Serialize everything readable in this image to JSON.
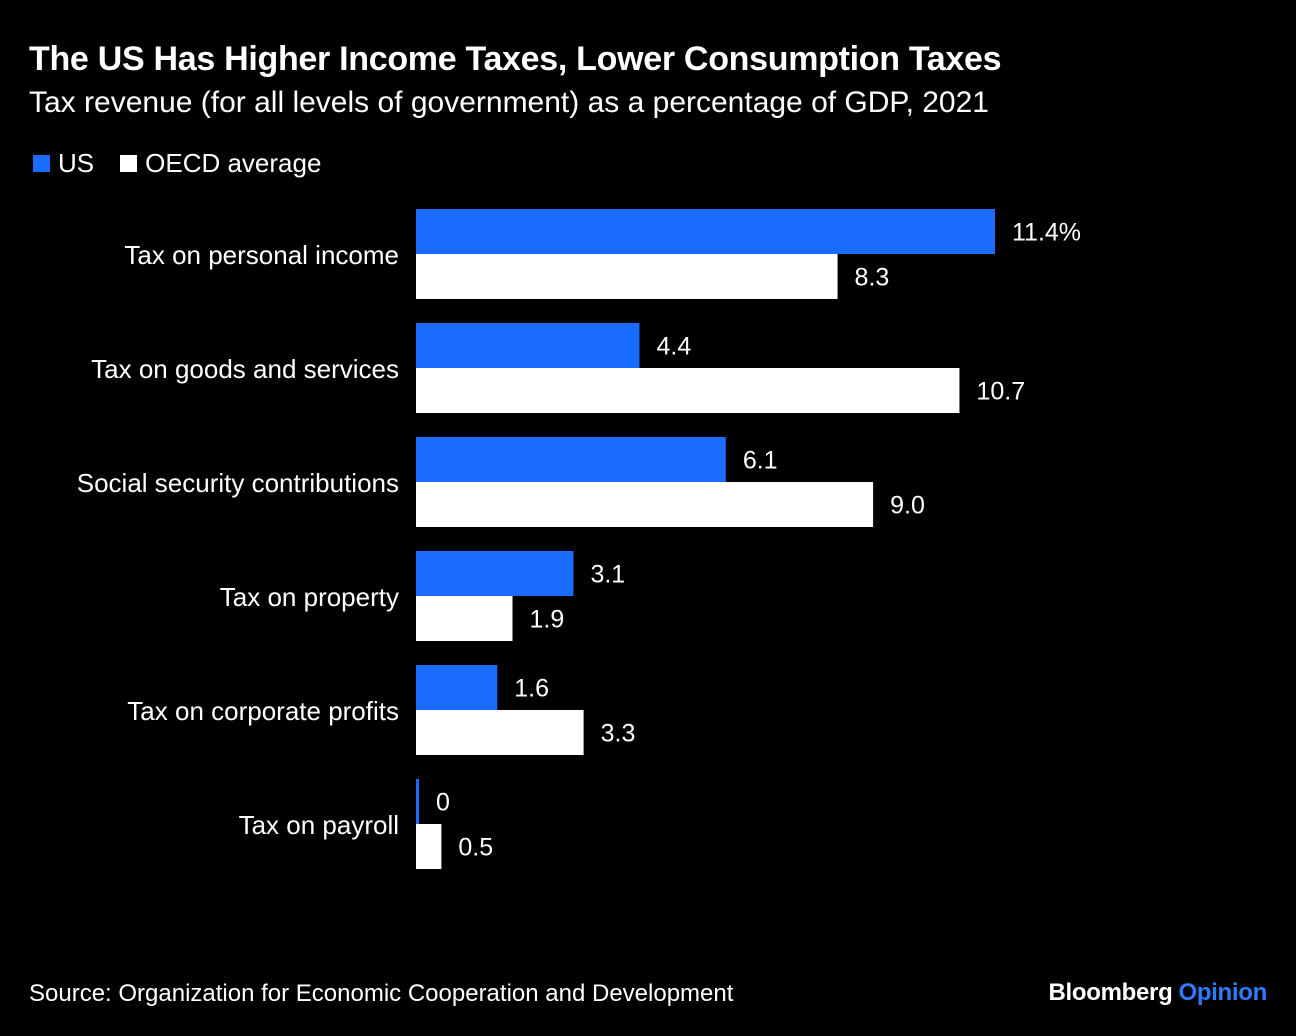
{
  "colors": {
    "background": "#000000",
    "us": "#1a6cff",
    "oecd": "#ffffff",
    "text": "#ffffff",
    "brand_accent": "#2f7bff"
  },
  "chart_data": {
    "type": "bar",
    "orientation": "horizontal",
    "title": "The US Has Higher Income Taxes, Lower Consumption Taxes",
    "subtitle": "Tax revenue (for all levels of government) as a percentage of GDP, 2021",
    "categories": [
      "Tax on personal income",
      "Tax on goods and services",
      "Social security contributions",
      "Tax on property",
      "Tax on corporate profits",
      "Tax on payroll"
    ],
    "series": [
      {
        "name": "US",
        "values": [
          11.4,
          4.4,
          6.1,
          3.1,
          1.6,
          0
        ],
        "labels": [
          "11.4%",
          "4.4",
          "6.1",
          "3.1",
          "1.6",
          "0"
        ]
      },
      {
        "name": "OECD average",
        "values": [
          8.3,
          10.7,
          9.0,
          1.9,
          3.3,
          0.5
        ],
        "labels": [
          "8.3",
          "10.7",
          "9.0",
          "1.9",
          "3.3",
          "0.5"
        ]
      }
    ],
    "xlim": [
      0,
      11.4
    ],
    "grid": false,
    "legend_position": "top-left"
  },
  "footer": {
    "source": "Source: Organization for Economic Cooperation and Development",
    "brand_main": "Bloomberg",
    "brand_accent": "Opinion"
  }
}
